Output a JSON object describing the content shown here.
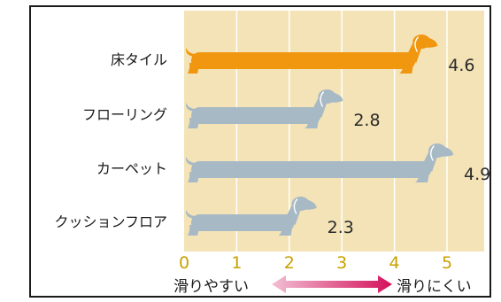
{
  "chart_data": {
    "type": "bar",
    "orientation": "horizontal",
    "categories": [
      "床タイル",
      "フローリング",
      "カーペット",
      "クッションフロア"
    ],
    "values": [
      4.6,
      2.8,
      4.9,
      2.3
    ],
    "xlim": [
      0,
      5.5
    ],
    "x_ticks": [
      "0",
      "1",
      "2",
      "3",
      "4",
      "5"
    ],
    "grid": true,
    "left_note": "滑りやすい",
    "right_note": "滑りにくい",
    "mark_style": "dachshund",
    "highlight_index": 0,
    "colors": {
      "plot_bg": "#f3e3b6",
      "grid": "#ffffff",
      "highlight": "#f0960f",
      "normal": "#a7b9c5",
      "tick": "#c8a100",
      "value_text": "#2a2a2a",
      "arrow_left": "#f2bfd4",
      "arrow_right": "#d4105a"
    }
  }
}
